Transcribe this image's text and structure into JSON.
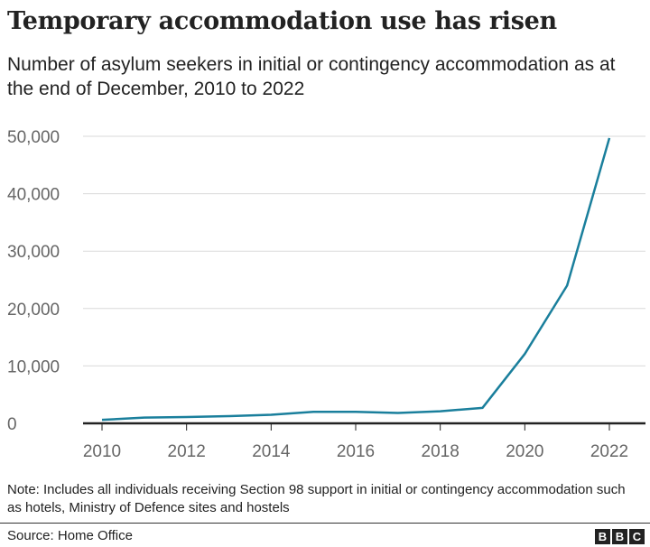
{
  "chart_data": {
    "type": "line",
    "title": "Temporary accommodation use has risen",
    "subtitle": "Number of asylum seekers in initial or contingency accommodation as at the end of December, 2010 to 2022",
    "xlabel": "",
    "ylabel": "",
    "x": [
      2010,
      2011,
      2012,
      2013,
      2014,
      2015,
      2016,
      2017,
      2018,
      2019,
      2020,
      2021,
      2022
    ],
    "values": [
      600,
      1000,
      1100,
      1250,
      1500,
      2000,
      2000,
      1800,
      2100,
      2700,
      12100,
      24000,
      49700
    ],
    "x_ticks": [
      "2010",
      "2012",
      "2014",
      "2016",
      "2018",
      "2020",
      "2022"
    ],
    "y_ticks": [
      "0",
      "10,000",
      "20,000",
      "30,000",
      "40,000",
      "50,000"
    ],
    "ylim": [
      0,
      50000
    ],
    "xlim": [
      2010,
      2022
    ],
    "grid": true,
    "line_color": "#1a7f9c"
  },
  "note": "Note: Includes all individuals receiving Section 98 support in initial or contingency accommodation such as hotels, Ministry of Defence sites and hostels",
  "source": "Source: Home Office",
  "logo": [
    "B",
    "B",
    "C"
  ]
}
